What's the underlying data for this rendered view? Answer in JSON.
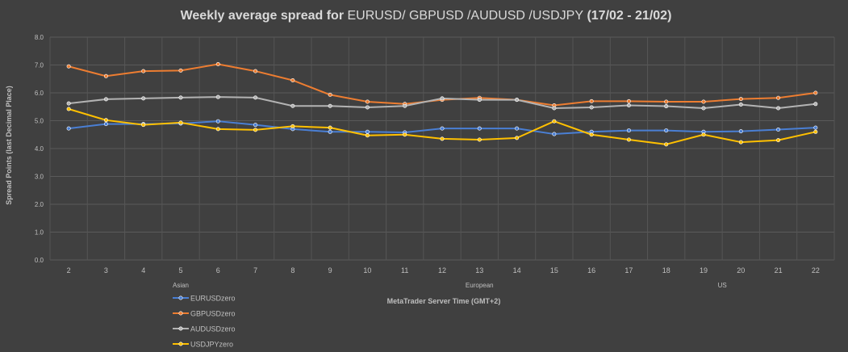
{
  "chart_data": {
    "type": "line",
    "title_parts": [
      "Weekly average spread for ",
      "EURUSD/ GBPUSD /AUDUSD /USDJPY",
      " (17/02 - 21/02)"
    ],
    "xlabel": "MetaTrader Server Time (GMT+2)",
    "ylabel": "Spread Points  (last Decimal Place)",
    "ylim": [
      0,
      8
    ],
    "yticks": [
      "0.0",
      "1.0",
      "2.0",
      "3.0",
      "4.0",
      "5.0",
      "6.0",
      "7.0",
      "8.0"
    ],
    "grid": true,
    "legend_position": "bottom-left",
    "categories": [
      "2",
      "3",
      "4",
      "5",
      "6",
      "7",
      "8",
      "9",
      "10",
      "11",
      "12",
      "13",
      "14",
      "15",
      "16",
      "17",
      "18",
      "19",
      "20",
      "21",
      "22"
    ],
    "sessions": [
      {
        "label": "Asian",
        "category": "5"
      },
      {
        "label": "European",
        "category": "13"
      },
      {
        "label": "US",
        "category": "19.5"
      }
    ],
    "series": [
      {
        "name": "EURUSDzero",
        "color": "#4a7fd4",
        "values": [
          4.72,
          4.88,
          4.88,
          4.9,
          4.98,
          4.85,
          4.7,
          4.6,
          4.6,
          4.58,
          4.72,
          4.72,
          4.72,
          4.52,
          4.6,
          4.65,
          4.65,
          4.6,
          4.62,
          4.68,
          4.75
        ]
      },
      {
        "name": "GBPUSDzero",
        "color": "#ed7d31",
        "values": [
          6.95,
          6.6,
          6.78,
          6.8,
          7.03,
          6.78,
          6.45,
          5.93,
          5.68,
          5.6,
          5.75,
          5.82,
          5.75,
          5.55,
          5.7,
          5.7,
          5.68,
          5.68,
          5.78,
          5.82,
          6.0
        ]
      },
      {
        "name": "AUDUSDzero",
        "color": "#b3b3b3",
        "values": [
          5.62,
          5.77,
          5.8,
          5.83,
          5.85,
          5.83,
          5.53,
          5.53,
          5.48,
          5.53,
          5.8,
          5.75,
          5.75,
          5.45,
          5.48,
          5.55,
          5.52,
          5.45,
          5.58,
          5.45,
          5.6
        ]
      },
      {
        "name": "USDJPYzero",
        "color": "#ffc000",
        "values": [
          5.42,
          5.02,
          4.85,
          4.93,
          4.7,
          4.67,
          4.8,
          4.75,
          4.47,
          4.5,
          4.35,
          4.32,
          4.38,
          4.98,
          4.5,
          4.32,
          4.15,
          4.5,
          4.23,
          4.3,
          4.6
        ]
      }
    ]
  }
}
